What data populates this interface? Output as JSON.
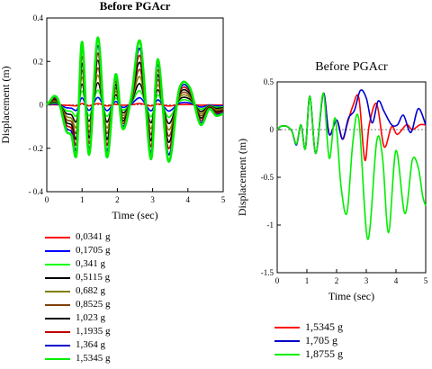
{
  "chart_data": [
    {
      "type": "line",
      "title": "Before PGAcr",
      "xlabel": "Time (sec)",
      "ylabel": "Displacement (m)",
      "xlim": [
        0,
        5
      ],
      "ylim": [
        -0.4,
        0.4
      ],
      "xticks": [
        0,
        1,
        2,
        3,
        4,
        5
      ],
      "yticks": [
        -0.4,
        -0.2,
        0,
        0.2,
        0.4
      ],
      "xtick_labels": [
        "0",
        "1",
        "2",
        "3",
        "4",
        "5"
      ],
      "ytick_labels": [
        "- 0.4",
        "- 0.2",
        "0",
        "0.2",
        "0.4"
      ],
      "grid": false,
      "legend_position": "bottom",
      "series": [
        {
          "name": "0,0341 g",
          "color": "#ff0000",
          "scale": 0.02
        },
        {
          "name": "0,1705 g",
          "color": "#0000ff",
          "scale": 0.11
        },
        {
          "name": "0,341 g",
          "color": "#00ff00",
          "scale": 0.22
        },
        {
          "name": "0,5115 g",
          "color": "#000000",
          "scale": 0.33
        },
        {
          "name": "0,682 g",
          "color": "#808000",
          "scale": 0.44
        },
        {
          "name": "0,8525 g",
          "color": "#804000",
          "scale": 0.55
        },
        {
          "name": "1,023 g",
          "color": "#000000",
          "scale": 0.66
        },
        {
          "name": "1,1935 g",
          "color": "#c00000",
          "scale": 0.77
        },
        {
          "name": "1,364 g",
          "color": "#0000cc",
          "scale": 0.88
        },
        {
          "name": "1,5345 g",
          "color": "#00ee00",
          "scale": 1.0
        }
      ],
      "base_series_x": [
        0,
        0.1,
        0.2,
        0.3,
        0.4,
        0.55,
        0.7,
        0.85,
        1.0,
        1.2,
        1.45,
        1.7,
        1.95,
        2.15,
        2.4,
        2.65,
        2.95,
        3.15,
        3.45,
        3.75,
        4.05,
        4.35,
        4.6,
        4.8,
        5.0
      ],
      "base_series_y": [
        0,
        0.02,
        0.04,
        0.03,
        -0.02,
        -0.12,
        -0.14,
        -0.22,
        0.29,
        -0.23,
        0.31,
        -0.24,
        0.14,
        -0.11,
        0.04,
        0.29,
        -0.25,
        0.21,
        -0.26,
        0.07,
        0.08,
        -0.09,
        -0.02,
        -0.05,
        -0.04
      ]
    },
    {
      "type": "line",
      "title": "Before PGAcr",
      "xlabel": "Time (sec)",
      "ylabel": "Displacement (m)",
      "xlim": [
        0,
        5
      ],
      "ylim": [
        -1.5,
        0.5
      ],
      "xticks": [
        0,
        1,
        2,
        3,
        4,
        5
      ],
      "yticks": [
        -1.5,
        -1,
        -0.5,
        0,
        0.5
      ],
      "xtick_labels": [
        "0",
        "1",
        "2",
        "3",
        "4",
        "5"
      ],
      "ytick_labels": [
        "-1.5",
        "-1",
        "-0.5",
        "0",
        "0.5"
      ],
      "grid": false,
      "legend_position": "bottom",
      "series": [
        {
          "name": "1,5345 g",
          "color": "#ff0000",
          "x": [
            0,
            0.1,
            0.2,
            0.35,
            0.5,
            0.65,
            0.8,
            0.95,
            1.1,
            1.3,
            1.55,
            1.75,
            2.0,
            2.2,
            2.35,
            2.55,
            2.75,
            2.95,
            3.1,
            3.35,
            3.6,
            3.85,
            4.05,
            4.35,
            4.55,
            4.8,
            5.0
          ],
          "y": [
            0,
            0.03,
            0.04,
            0.03,
            -0.02,
            -0.15,
            0.05,
            -0.2,
            0.35,
            -0.25,
            0.38,
            -0.05,
            0.1,
            -0.1,
            0.05,
            0.25,
            0.33,
            -0.32,
            0.05,
            0.27,
            -0.18,
            0.03,
            -0.05,
            0.05,
            0.0,
            0.05,
            0.05
          ]
        },
        {
          "name": "1,705 g",
          "color": "#0000cc",
          "x": [
            0,
            0.1,
            0.2,
            0.35,
            0.5,
            0.65,
            0.8,
            0.95,
            1.1,
            1.3,
            1.55,
            1.75,
            2.0,
            2.2,
            2.4,
            2.6,
            2.8,
            3.0,
            3.2,
            3.4,
            3.6,
            3.85,
            4.05,
            4.25,
            4.5,
            4.75,
            5.0
          ],
          "y": [
            0,
            0.03,
            0.04,
            0.03,
            -0.02,
            -0.16,
            0.05,
            -0.2,
            0.35,
            -0.25,
            0.38,
            -0.05,
            0.1,
            -0.1,
            0.12,
            0.2,
            0.41,
            0.33,
            0.07,
            0.3,
            0.19,
            0.05,
            0.05,
            0.15,
            -0.03,
            0.22,
            0.05
          ]
        },
        {
          "name": "1,8755 g",
          "color": "#00ee00",
          "x": [
            0,
            0.1,
            0.2,
            0.35,
            0.5,
            0.65,
            0.8,
            0.95,
            1.1,
            1.3,
            1.55,
            1.75,
            1.95,
            2.15,
            2.35,
            2.55,
            2.75,
            3.05,
            3.35,
            3.55,
            3.75,
            4.0,
            4.3,
            4.55,
            4.75,
            4.9,
            5.0
          ],
          "y": [
            0,
            0.03,
            0.04,
            0.03,
            -0.02,
            -0.15,
            0.05,
            -0.2,
            0.35,
            -0.25,
            0.38,
            -0.3,
            0.12,
            -0.6,
            -0.87,
            -0.12,
            0.1,
            -1.15,
            -0.12,
            -0.3,
            -1.08,
            -0.22,
            -0.88,
            -0.32,
            -0.4,
            -0.7,
            -0.8
          ]
        }
      ]
    }
  ]
}
